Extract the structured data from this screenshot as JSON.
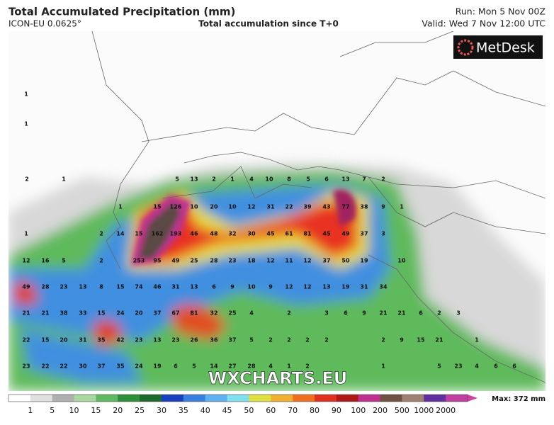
{
  "header": {
    "title": "Total Accumulated Precipitation (mm)",
    "model": "ICON-EU 0.0625°",
    "subtitle": "Total accumulation since T+0",
    "run": "Run: Mon 5 Nov 00Z",
    "valid": "Valid: Wed 7 Nov 12:00 UTC"
  },
  "logo": "MetDesk",
  "watermark": "WXCHARTS.EU",
  "max_label": "Max: 372 mm",
  "colorbar_labels": [
    1,
    5,
    10,
    15,
    20,
    25,
    30,
    35,
    40,
    45,
    50,
    60,
    70,
    80,
    90,
    100,
    200,
    500,
    1000,
    2000
  ],
  "map_labels": [
    1,
    1,
    2,
    1,
    5,
    13,
    2,
    1,
    4,
    10,
    8,
    5,
    6,
    13,
    7,
    2,
    1,
    15,
    126,
    10,
    20,
    10,
    12,
    31,
    22,
    39,
    43,
    77,
    38,
    9,
    1,
    1,
    2,
    14,
    15,
    162,
    193,
    46,
    48,
    32,
    30,
    45,
    61,
    81,
    45,
    49,
    37,
    3,
    12,
    16,
    5,
    2,
    253,
    95,
    49,
    25,
    28,
    23,
    18,
    12,
    11,
    12,
    37,
    50,
    19,
    10,
    49,
    28,
    23,
    13,
    8,
    15,
    74,
    46,
    31,
    13,
    6,
    9,
    10,
    9,
    12,
    12,
    13,
    19,
    31,
    34,
    21,
    21,
    38,
    33,
    15,
    24,
    20,
    37,
    67,
    81,
    32,
    25,
    4,
    2,
    3,
    6,
    9,
    21,
    21,
    6,
    2,
    3,
    22,
    15,
    20,
    31,
    35,
    42,
    23,
    13,
    23,
    26,
    36,
    37,
    5,
    2,
    2,
    2,
    2,
    2,
    9,
    15,
    21,
    1,
    23,
    22,
    22,
    30,
    37,
    35,
    24,
    19,
    6,
    5,
    14,
    27,
    28,
    4,
    1,
    2,
    1,
    5,
    23,
    4,
    6,
    6
  ]
}
